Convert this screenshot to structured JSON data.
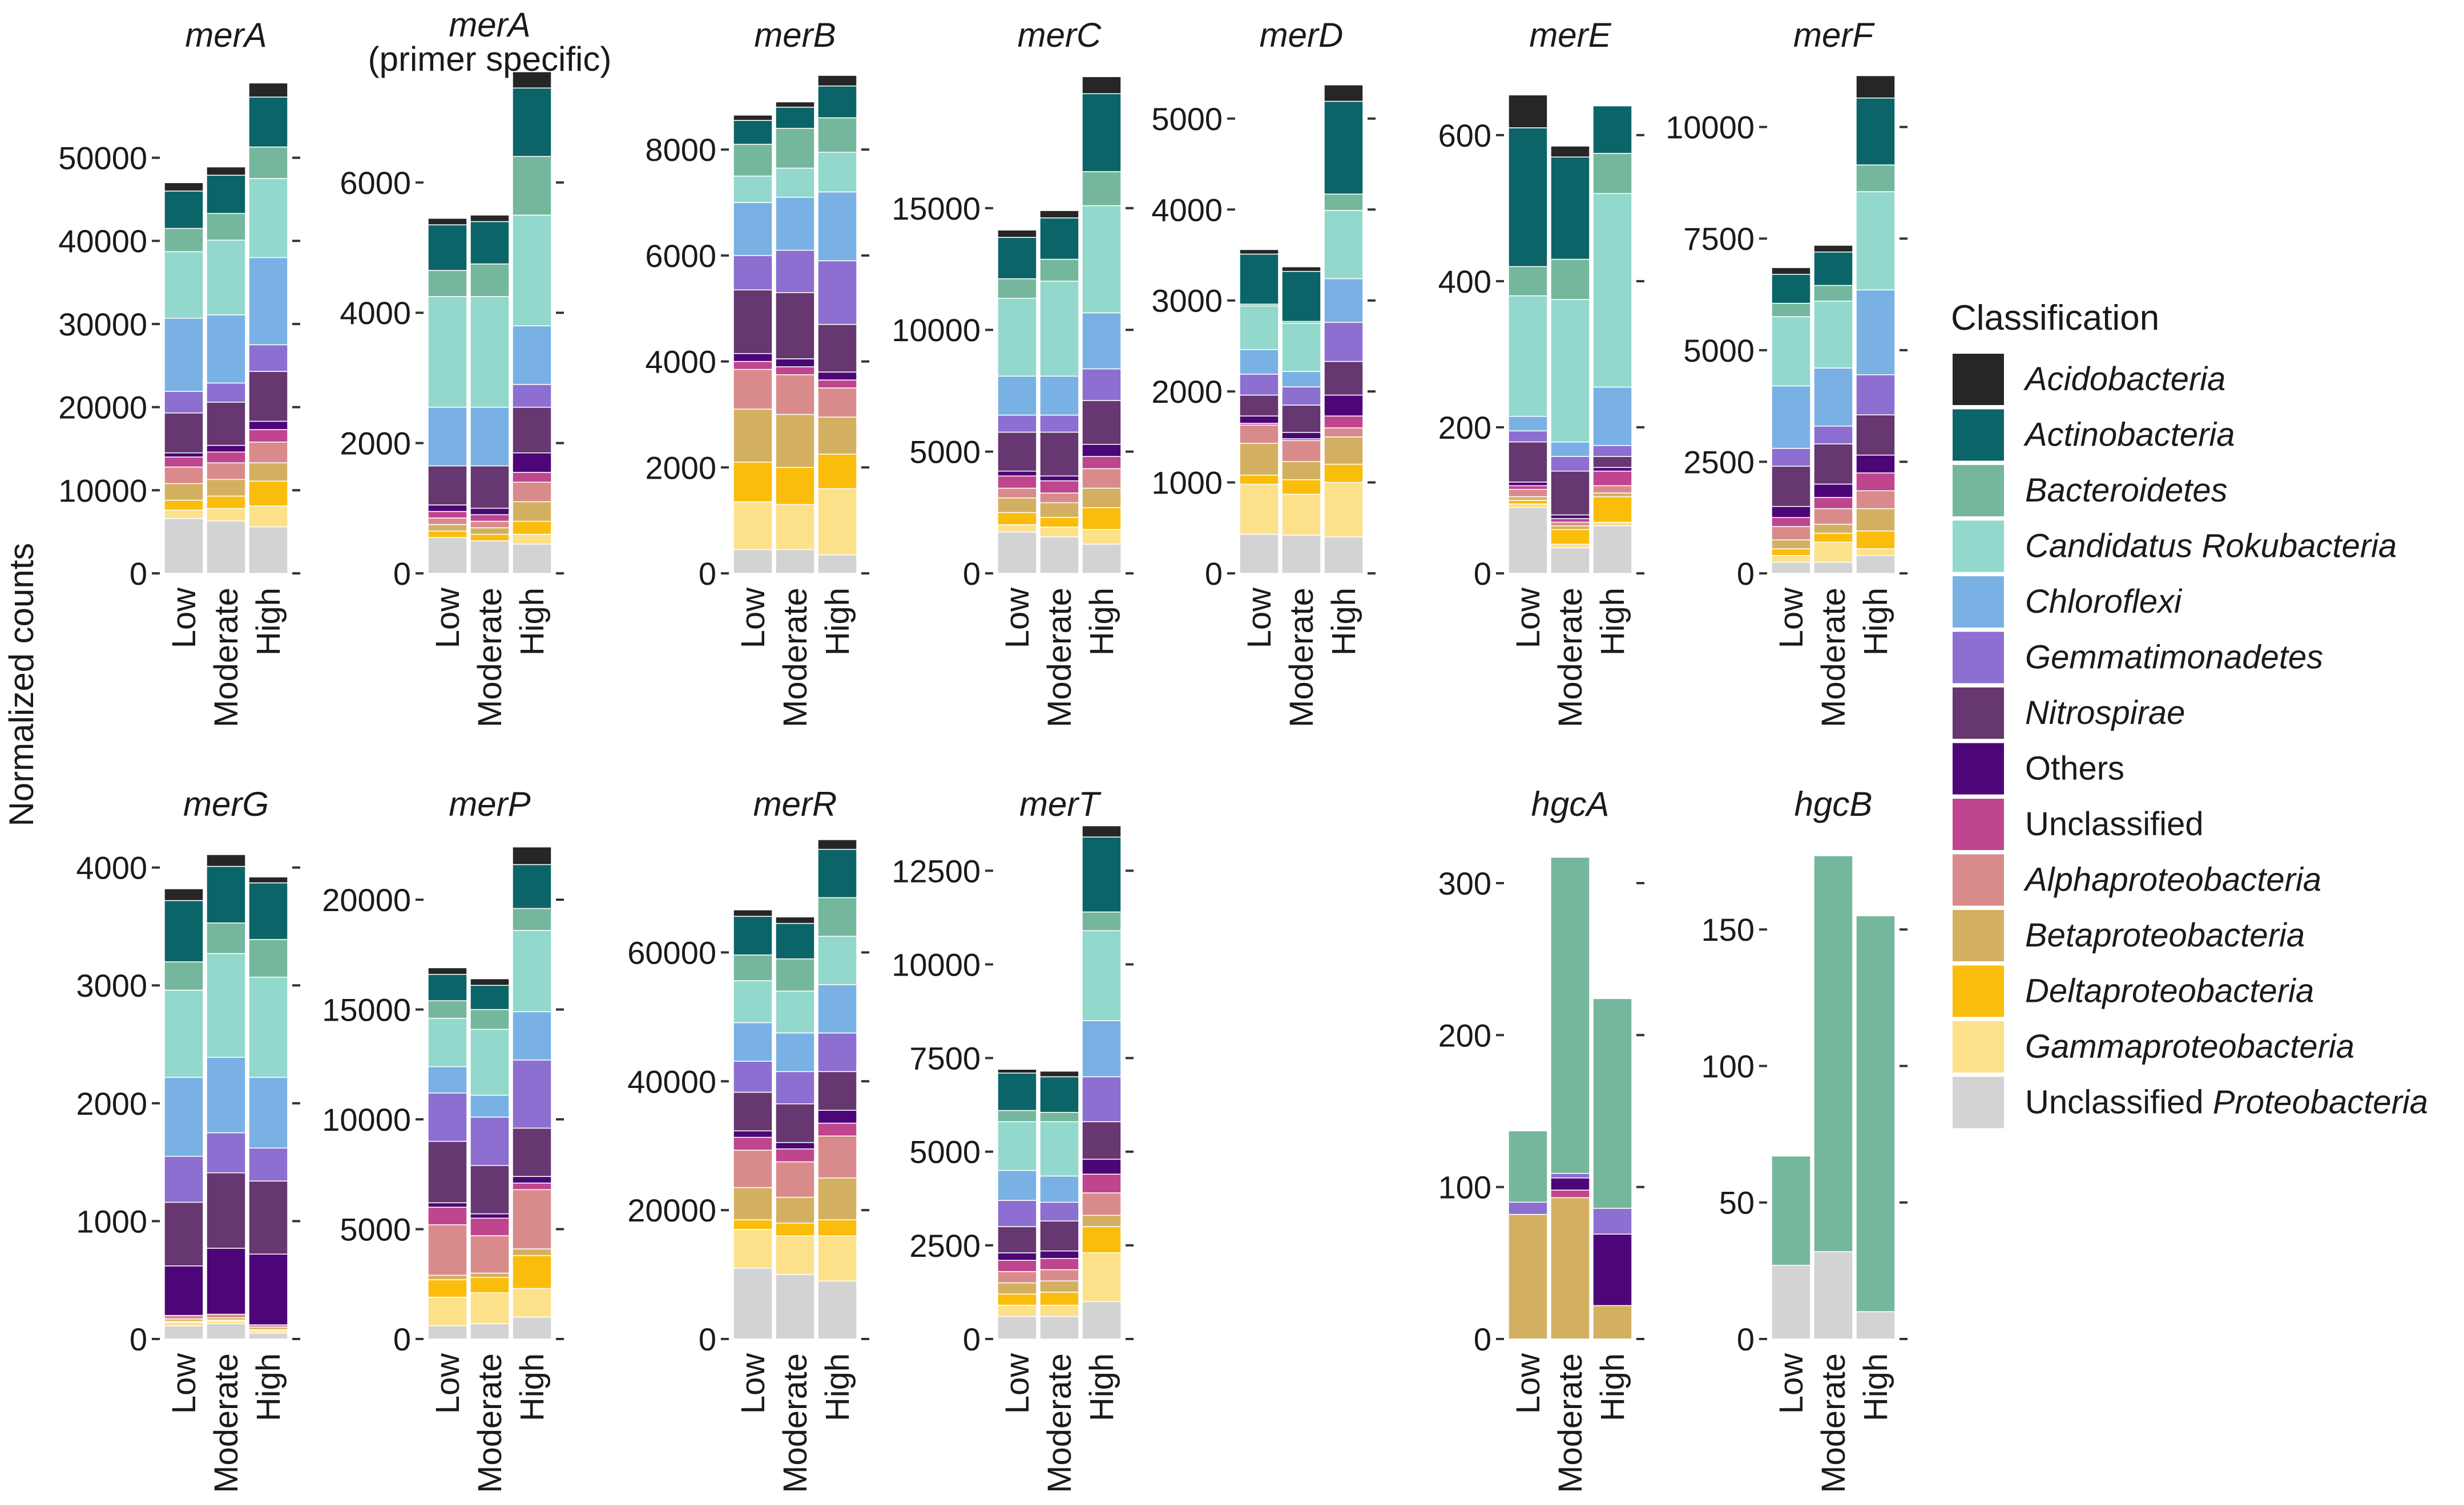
{
  "y_axis_label": "Normalized counts",
  "legend": {
    "title": "Classification",
    "items": [
      {
        "name": "Acidobacteria",
        "color": "#262626",
        "italic": true
      },
      {
        "name": "Actinobacteria",
        "color": "#0b6468",
        "italic": true
      },
      {
        "name": "Bacteroidetes",
        "color": "#74b79c",
        "italic": true
      },
      {
        "name": "Candidatus Rokubacteria",
        "color": "#92d8cc",
        "italic": true
      },
      {
        "name": "Chloroflexi",
        "color": "#79b1e4",
        "italic": true
      },
      {
        "name": "Gemmatimonadetes",
        "color": "#8c6fd0",
        "italic": true
      },
      {
        "name": "Nitrospirae",
        "color": "#663770",
        "italic": true
      },
      {
        "name": "Others",
        "color": "#4c0677",
        "italic": false
      },
      {
        "name": "Unclassified",
        "color": "#bf458f",
        "italic": false
      },
      {
        "name": "Alphaproteobacteria",
        "color": "#d98b8b",
        "italic": true
      },
      {
        "name": "Betaproteobacteria",
        "color": "#d3b061",
        "italic": true
      },
      {
        "name": "Deltaproteobacteria",
        "color": "#fbbd0c",
        "italic": true
      },
      {
        "name": "Gammaproteobacteria",
        "color": "#fde08a",
        "italic": true
      },
      {
        "name": "Unclassified Proteobacteria",
        "color": "#d3d3d3",
        "italic": false,
        "italic_part": "Proteobacteria"
      }
    ]
  },
  "chart_data": [
    {
      "type": "bar",
      "title": "merA",
      "categories": [
        "Low",
        "Moderate",
        "High"
      ],
      "ylim": [
        0,
        58000
      ],
      "yticks": [
        0,
        10000,
        20000,
        30000,
        40000,
        50000
      ],
      "ytick_labels": [
        "0",
        "10000",
        "20000",
        "30000",
        "40000",
        "50000"
      ],
      "stacks": [
        [
          1000,
          4500,
          2800,
          8000,
          8800,
          2600,
          4800,
          500,
          1200,
          2000,
          2000,
          1200,
          1000,
          6600
        ],
        [
          1000,
          4600,
          3200,
          9000,
          8200,
          2300,
          5200,
          800,
          1300,
          2000,
          2000,
          1500,
          1500,
          6300
        ],
        [
          1700,
          6000,
          3800,
          9500,
          10500,
          3200,
          6000,
          1000,
          1500,
          2500,
          2200,
          3000,
          2500,
          5600
        ]
      ]
    },
    {
      "type": "bar",
      "title": "merA",
      "subtitle": "(primer specific)",
      "categories": [
        "Low",
        "Moderate",
        "High"
      ],
      "ylim": [
        0,
        7400
      ],
      "yticks": [
        0,
        2000,
        4000,
        6000
      ],
      "ytick_labels": [
        "0",
        "2000",
        "4000",
        "6000"
      ],
      "stacks": [
        [
          100,
          700,
          400,
          1700,
          900,
          0,
          600,
          100,
          100,
          100,
          100,
          100,
          0,
          550
        ],
        [
          100,
          650,
          500,
          1700,
          900,
          0,
          650,
          100,
          100,
          100,
          100,
          100,
          0,
          500
        ],
        [
          250,
          1050,
          900,
          1700,
          900,
          350,
          700,
          300,
          150,
          300,
          300,
          200,
          150,
          450
        ]
      ]
    },
    {
      "type": "bar",
      "title": "merB",
      "categories": [
        "Low",
        "Moderate",
        "High"
      ],
      "ylim": [
        0,
        9100
      ],
      "yticks": [
        0,
        2000,
        4000,
        6000,
        8000
      ],
      "ytick_labels": [
        "0",
        "2000",
        "4000",
        "6000",
        "8000"
      ],
      "stacks": [
        [
          100,
          450,
          600,
          500,
          1000,
          650,
          1200,
          150,
          150,
          750,
          1000,
          750,
          900,
          450
        ],
        [
          100,
          400,
          750,
          550,
          1000,
          800,
          1250,
          150,
          150,
          750,
          1000,
          700,
          850,
          450
        ],
        [
          200,
          600,
          650,
          750,
          1300,
          1200,
          900,
          150,
          150,
          550,
          700,
          650,
          1250,
          350
        ]
      ]
    },
    {
      "type": "bar",
      "title": "merC",
      "categories": [
        "Low",
        "Moderate",
        "High"
      ],
      "ylim": [
        0,
        19800
      ],
      "yticks": [
        0,
        5000,
        10000,
        15000
      ],
      "ytick_labels": [
        "0",
        "5000",
        "10000",
        "15000"
      ],
      "stacks": [
        [
          300,
          1700,
          800,
          3200,
          1600,
          700,
          1600,
          200,
          500,
          400,
          600,
          500,
          300,
          1700
        ],
        [
          300,
          1700,
          900,
          3900,
          1600,
          700,
          1800,
          200,
          500,
          400,
          600,
          400,
          400,
          1500
        ],
        [
          700,
          3200,
          1400,
          4400,
          2300,
          1300,
          1800,
          500,
          500,
          800,
          800,
          900,
          600,
          1200
        ]
      ]
    },
    {
      "type": "bar",
      "title": "merD",
      "categories": [
        "Low",
        "Moderate",
        "High"
      ],
      "ylim": [
        0,
        5300
      ],
      "yticks": [
        0,
        1000,
        2000,
        3000,
        4000,
        5000
      ],
      "ytick_labels": [
        "0",
        "1000",
        "2000",
        "3000",
        "4000",
        "5000"
      ],
      "stacks": [
        [
          50,
          550,
          20,
          480,
          270,
          230,
          230,
          80,
          20,
          200,
          350,
          100,
          550,
          430
        ],
        [
          50,
          550,
          20,
          530,
          170,
          200,
          300,
          70,
          20,
          230,
          200,
          160,
          450,
          420
        ],
        [
          180,
          1020,
          180,
          750,
          480,
          430,
          370,
          230,
          130,
          100,
          300,
          200,
          600,
          400
        ]
      ]
    },
    {
      "type": "bar",
      "title": "merE",
      "categories": [
        "Low",
        "Moderate",
        "High"
      ],
      "ylim": [
        0,
        660
      ],
      "yticks": [
        0,
        200,
        400,
        600
      ],
      "ytick_labels": [
        "0",
        "200",
        "400",
        "600"
      ],
      "stacks": [
        [
          45,
          190,
          40,
          165,
          20,
          15,
          55,
          5,
          5,
          10,
          5,
          5,
          5,
          90
        ],
        [
          15,
          140,
          55,
          195,
          20,
          20,
          60,
          5,
          5,
          5,
          5,
          20,
          5,
          35
        ],
        [
          0,
          65,
          55,
          265,
          80,
          15,
          15,
          5,
          20,
          10,
          5,
          35,
          5,
          65
        ]
      ]
    },
    {
      "type": "bar",
      "title": "merF",
      "categories": [
        "Low",
        "Moderate",
        "High"
      ],
      "ylim": [
        0,
        10800
      ],
      "yticks": [
        0,
        2500,
        5000,
        7500,
        10000
      ],
      "ytick_labels": [
        "0",
        "2500",
        "5000",
        "7500",
        "10000"
      ],
      "stacks": [
        [
          150,
          650,
          300,
          1550,
          1400,
          400,
          900,
          250,
          200,
          300,
          200,
          150,
          150,
          250
        ],
        [
          150,
          750,
          350,
          1500,
          1300,
          400,
          900,
          300,
          250,
          350,
          200,
          200,
          450,
          250
        ],
        [
          500,
          1500,
          600,
          2200,
          1900,
          900,
          900,
          400,
          400,
          400,
          500,
          400,
          150,
          400
        ]
      ]
    },
    {
      "type": "bar",
      "title": "merG",
      "categories": [
        "Low",
        "Moderate",
        "High"
      ],
      "ylim": [
        0,
        4100
      ],
      "yticks": [
        0,
        1000,
        2000,
        3000,
        4000
      ],
      "ytick_labels": [
        "0",
        "1000",
        "2000",
        "3000",
        "4000"
      ],
      "stacks": [
        [
          100,
          520,
          240,
          740,
          670,
          390,
          540,
          420,
          0,
          30,
          20,
          10,
          30,
          110
        ],
        [
          100,
          480,
          260,
          880,
          640,
          340,
          640,
          560,
          0,
          30,
          20,
          10,
          20,
          130
        ],
        [
          50,
          480,
          320,
          850,
          600,
          280,
          620,
          600,
          0,
          20,
          20,
          10,
          20,
          50
        ]
      ]
    },
    {
      "type": "bar",
      "title": "merP",
      "categories": [
        "Low",
        "Moderate",
        "High"
      ],
      "ylim": [
        0,
        22000
      ],
      "yticks": [
        0,
        5000,
        10000,
        15000,
        20000
      ],
      "ytick_labels": [
        "0",
        "5000",
        "10000",
        "15000",
        "20000"
      ],
      "stacks": [
        [
          300,
          1200,
          800,
          2200,
          1200,
          2200,
          2800,
          200,
          800,
          2300,
          200,
          800,
          1300,
          600
        ],
        [
          300,
          1100,
          900,
          3000,
          1000,
          2200,
          2200,
          200,
          800,
          1700,
          200,
          700,
          1400,
          700
        ],
        [
          800,
          2000,
          1000,
          3700,
          2200,
          3100,
          2200,
          300,
          300,
          2700,
          300,
          1500,
          1300,
          1000
        ]
      ]
    },
    {
      "type": "bar",
      "title": "merR",
      "categories": [
        "Low",
        "Moderate",
        "High"
      ],
      "ylim": [
        0,
        75000
      ],
      "yticks": [
        0,
        20000,
        40000,
        60000
      ],
      "ytick_labels": [
        "0",
        "20000",
        "40000",
        "60000"
      ],
      "stacks": [
        [
          1000,
          6000,
          4000,
          6500,
          6000,
          4800,
          6000,
          1000,
          2000,
          5800,
          5000,
          1500,
          6000,
          11000
        ],
        [
          1000,
          5500,
          5000,
          6500,
          6000,
          5000,
          6000,
          1000,
          2000,
          5500,
          4000,
          2000,
          6000,
          10000
        ],
        [
          1500,
          7500,
          6000,
          7500,
          7500,
          6000,
          6000,
          2000,
          2000,
          6500,
          6500,
          2500,
          7000,
          9000
        ]
      ]
    },
    {
      "type": "bar",
      "title": "merT",
      "categories": [
        "Low",
        "Moderate",
        "High"
      ],
      "ylim": [
        0,
        12900
      ],
      "yticks": [
        0,
        2500,
        5000,
        7500,
        10000,
        12500
      ],
      "ytick_labels": [
        "0",
        "2500",
        "5000",
        "7500",
        "10000",
        "12500"
      ],
      "stacks": [
        [
          100,
          1000,
          300,
          1300,
          800,
          700,
          700,
          200,
          300,
          300,
          300,
          300,
          300,
          600
        ],
        [
          150,
          950,
          250,
          1450,
          700,
          500,
          800,
          200,
          300,
          300,
          300,
          350,
          300,
          600
        ],
        [
          300,
          2000,
          500,
          2400,
          1500,
          1200,
          1000,
          400,
          500,
          600,
          300,
          700,
          1300,
          1000
        ]
      ]
    },
    {
      "type": "bar",
      "title": "hgcA",
      "categories": [
        "Low",
        "Moderate",
        "High"
      ],
      "ylim": [
        0,
        318
      ],
      "yticks": [
        0,
        100,
        200,
        300
      ],
      "ytick_labels": [
        "0",
        "100",
        "200",
        "300"
      ],
      "stacks": [
        [
          0,
          0,
          47,
          0,
          0,
          8,
          0,
          0,
          0,
          0,
          82,
          0,
          0,
          0
        ],
        [
          0,
          0,
          208,
          0,
          0,
          3,
          0,
          8,
          5,
          0,
          93,
          0,
          0,
          0
        ],
        [
          0,
          0,
          138,
          0,
          0,
          17,
          0,
          47,
          0,
          0,
          22,
          0,
          0,
          0
        ]
      ]
    },
    {
      "type": "bar",
      "title": "hgcB",
      "categories": [
        "Low",
        "Moderate",
        "High"
      ],
      "ylim": [
        0,
        177
      ],
      "yticks": [
        0,
        50,
        100,
        150
      ],
      "ytick_labels": [
        "0",
        "50",
        "100",
        "150"
      ],
      "stacks": [
        [
          0,
          0,
          40,
          0,
          0,
          0,
          0,
          0,
          0,
          0,
          0,
          0,
          0,
          27
        ],
        [
          0,
          0,
          145,
          0,
          0,
          0,
          0,
          0,
          0,
          0,
          0,
          0,
          0,
          32
        ],
        [
          0,
          0,
          145,
          0,
          0,
          0,
          0,
          0,
          0,
          0,
          0,
          0,
          0,
          10
        ]
      ]
    }
  ]
}
